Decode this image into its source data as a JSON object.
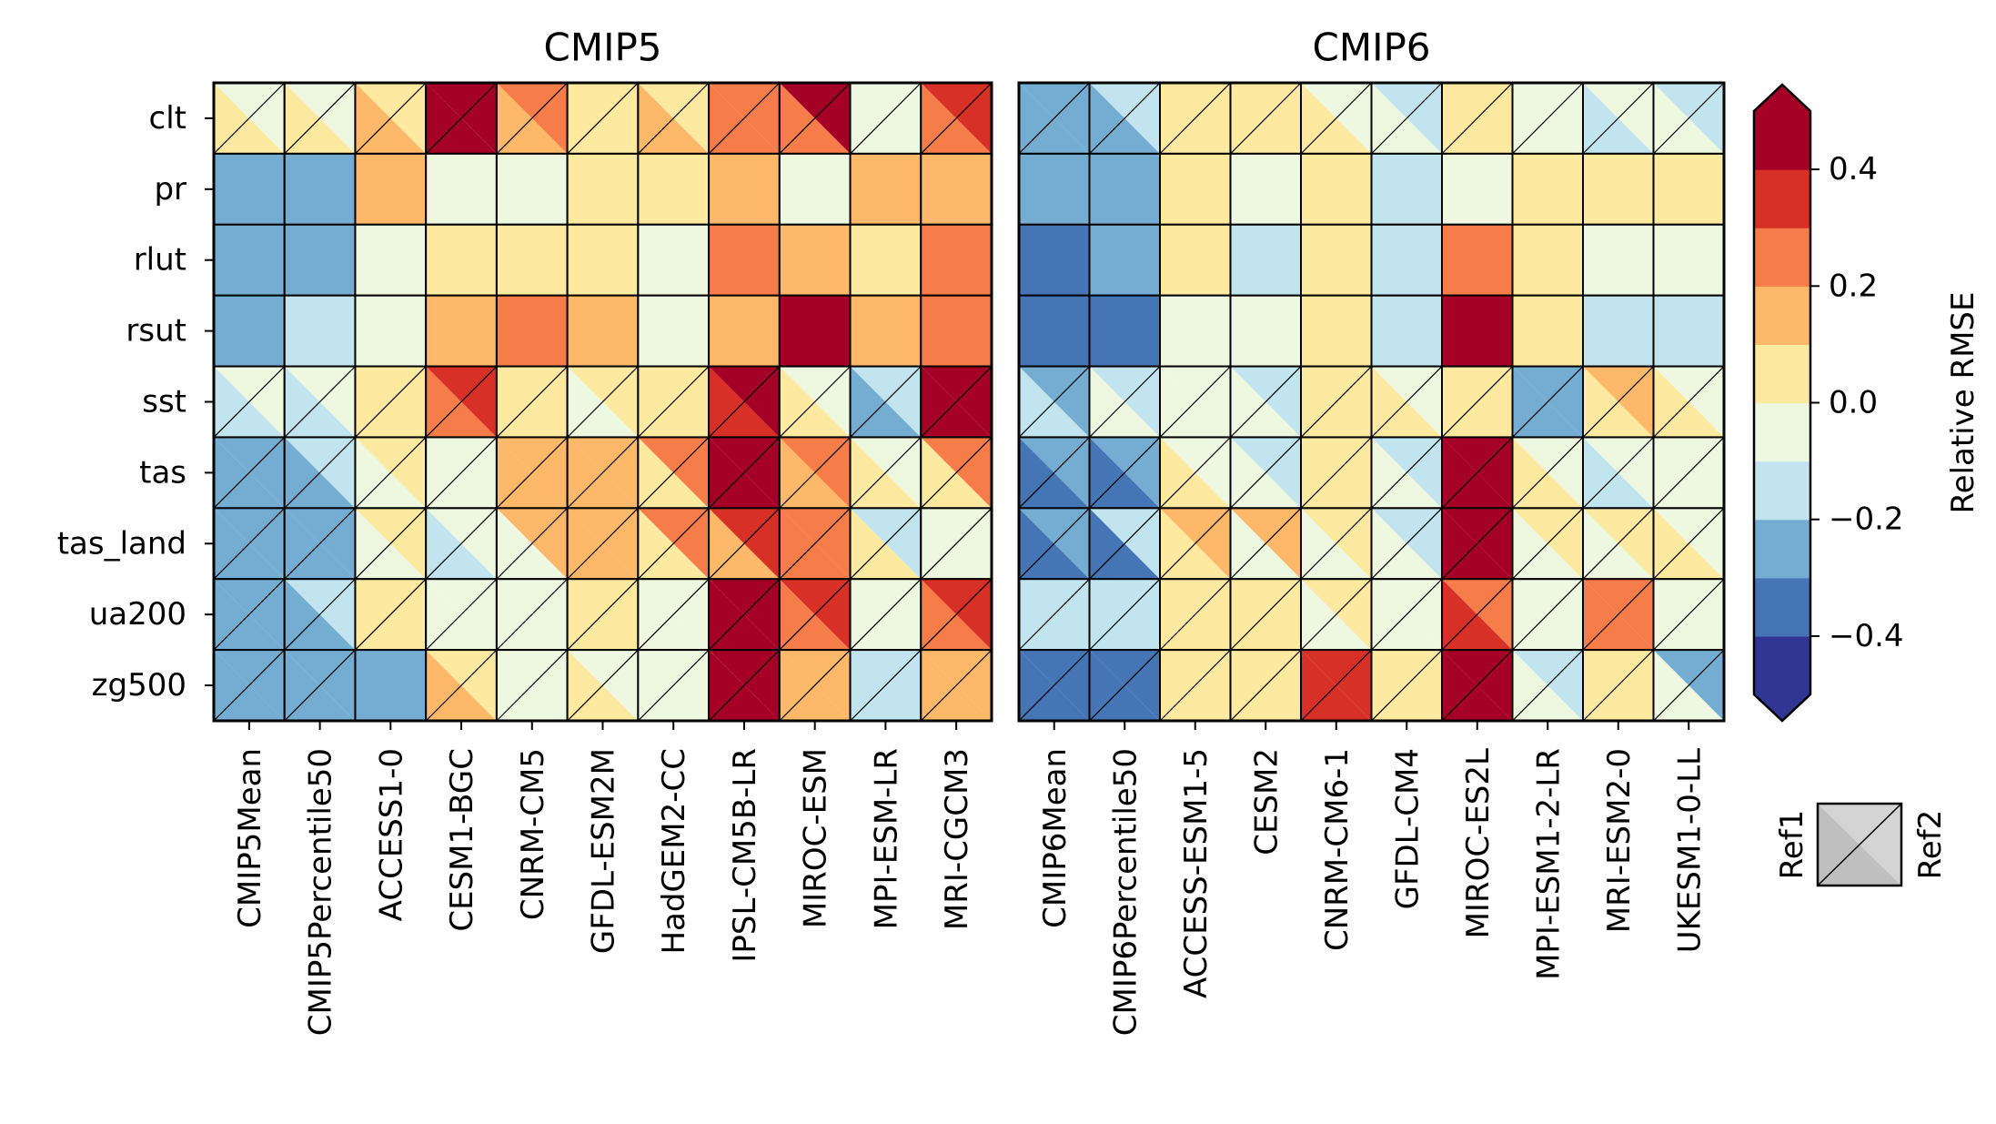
{
  "chart_data": {
    "type": "heatmap",
    "rows": [
      "clt",
      "pr",
      "rlut",
      "rsut",
      "sst",
      "tas",
      "tas_land",
      "ua200",
      "zg500"
    ],
    "panels": [
      {
        "title": "CMIP5",
        "columns": [
          "CMIP5Mean",
          "CMIP5Percentile50",
          "ACCESS1-0",
          "CESM1-BGC",
          "CNRM-CM5",
          "GFDL-ESM2M",
          "HadGEM2-CC",
          "IPSL-CM5B-LR",
          "MIROC-ESM",
          "MPI-ESM-LR",
          "MRI-CGCM3"
        ],
        "values": [
          [
            [
              0.05,
              -0.05
            ],
            [
              0.05,
              -0.05
            ],
            [
              0.15,
              0.05
            ],
            [
              0.45,
              0.45
            ],
            [
              0.15,
              0.25
            ],
            [
              0.05,
              0.05
            ],
            [
              0.15,
              0.05
            ],
            [
              0.25,
              0.25
            ],
            [
              0.25,
              0.45
            ],
            [
              -0.05,
              -0.05
            ],
            [
              0.25,
              0.35
            ]
          ],
          [
            [
              -0.25,
              null
            ],
            [
              -0.25,
              null
            ],
            [
              0.15,
              null
            ],
            [
              -0.05,
              null
            ],
            [
              -0.05,
              null
            ],
            [
              0.05,
              null
            ],
            [
              0.05,
              null
            ],
            [
              0.15,
              null
            ],
            [
              -0.05,
              null
            ],
            [
              0.15,
              null
            ],
            [
              0.15,
              null
            ]
          ],
          [
            [
              -0.25,
              null
            ],
            [
              -0.25,
              null
            ],
            [
              -0.05,
              null
            ],
            [
              0.05,
              null
            ],
            [
              0.05,
              null
            ],
            [
              0.05,
              null
            ],
            [
              -0.05,
              null
            ],
            [
              0.25,
              null
            ],
            [
              0.15,
              null
            ],
            [
              0.05,
              null
            ],
            [
              0.25,
              null
            ]
          ],
          [
            [
              -0.25,
              null
            ],
            [
              -0.15,
              null
            ],
            [
              -0.05,
              null
            ],
            [
              0.15,
              null
            ],
            [
              0.25,
              null
            ],
            [
              0.15,
              null
            ],
            [
              -0.05,
              null
            ],
            [
              0.15,
              null
            ],
            [
              0.45,
              null
            ],
            [
              0.15,
              null
            ],
            [
              0.25,
              null
            ]
          ],
          [
            [
              -0.15,
              -0.05
            ],
            [
              -0.15,
              -0.05
            ],
            [
              0.05,
              0.05
            ],
            [
              0.25,
              0.35
            ],
            [
              0.05,
              0.05
            ],
            [
              -0.05,
              0.05
            ],
            [
              0.05,
              0.05
            ],
            [
              0.35,
              0.45
            ],
            [
              0.05,
              -0.05
            ],
            [
              -0.25,
              -0.15
            ],
            [
              0.45,
              0.45
            ]
          ],
          [
            [
              -0.25,
              -0.25
            ],
            [
              -0.25,
              -0.15
            ],
            [
              -0.05,
              0.05
            ],
            [
              -0.05,
              -0.05
            ],
            [
              0.15,
              0.15
            ],
            [
              0.15,
              0.15
            ],
            [
              0.05,
              0.25
            ],
            [
              0.45,
              0.45
            ],
            [
              0.15,
              0.25
            ],
            [
              0.05,
              -0.05
            ],
            [
              0.05,
              0.25
            ]
          ],
          [
            [
              -0.25,
              -0.25
            ],
            [
              -0.25,
              -0.25
            ],
            [
              -0.05,
              0.05
            ],
            [
              -0.15,
              -0.05
            ],
            [
              -0.05,
              0.15
            ],
            [
              0.15,
              0.15
            ],
            [
              0.05,
              0.25
            ],
            [
              0.15,
              0.35
            ],
            [
              0.25,
              0.25
            ],
            [
              0.05,
              -0.15
            ],
            [
              -0.05,
              -0.05
            ]
          ],
          [
            [
              -0.25,
              -0.25
            ],
            [
              -0.25,
              -0.15
            ],
            [
              0.05,
              0.05
            ],
            [
              -0.05,
              -0.05
            ],
            [
              -0.05,
              -0.05
            ],
            [
              0.05,
              0.05
            ],
            [
              -0.05,
              -0.05
            ],
            [
              0.45,
              0.45
            ],
            [
              0.25,
              0.35
            ],
            [
              -0.05,
              -0.05
            ],
            [
              0.25,
              0.35
            ]
          ],
          [
            [
              -0.25,
              -0.25
            ],
            [
              -0.25,
              -0.25
            ],
            [
              -0.25,
              null
            ],
            [
              0.15,
              0.05
            ],
            [
              -0.05,
              -0.05
            ],
            [
              0.05,
              -0.05
            ],
            [
              -0.05,
              -0.05
            ],
            [
              0.45,
              0.45
            ],
            [
              0.15,
              0.15
            ],
            [
              -0.15,
              -0.15
            ],
            [
              0.15,
              0.15
            ]
          ]
        ]
      },
      {
        "title": "CMIP6",
        "columns": [
          "CMIP6Mean",
          "CMIP6Percentile50",
          "ACCESS-ESM1-5",
          "CESM2",
          "CNRM-CM6-1",
          "GFDL-CM4",
          "MIROC-ES2L",
          "MPI-ESM1-2-LR",
          "MRI-ESM2-0",
          "UKESM1-0-LL"
        ],
        "values": [
          [
            [
              -0.25,
              -0.25
            ],
            [
              -0.25,
              -0.15
            ],
            [
              0.05,
              0.05
            ],
            [
              0.05,
              0.05
            ],
            [
              0.05,
              -0.05
            ],
            [
              -0.05,
              -0.15
            ],
            [
              0.05,
              0.05
            ],
            [
              -0.05,
              -0.05
            ],
            [
              -0.15,
              -0.05
            ],
            [
              -0.05,
              -0.15
            ]
          ],
          [
            [
              -0.25,
              null
            ],
            [
              -0.25,
              null
            ],
            [
              0.05,
              null
            ],
            [
              -0.05,
              null
            ],
            [
              0.05,
              null
            ],
            [
              -0.15,
              null
            ],
            [
              -0.05,
              null
            ],
            [
              0.05,
              null
            ],
            [
              0.05,
              null
            ],
            [
              0.05,
              null
            ]
          ],
          [
            [
              -0.35,
              null
            ],
            [
              -0.25,
              null
            ],
            [
              0.05,
              null
            ],
            [
              -0.15,
              null
            ],
            [
              0.05,
              null
            ],
            [
              -0.15,
              null
            ],
            [
              0.25,
              null
            ],
            [
              0.05,
              null
            ],
            [
              -0.05,
              null
            ],
            [
              -0.05,
              null
            ]
          ],
          [
            [
              -0.35,
              null
            ],
            [
              -0.35,
              null
            ],
            [
              -0.05,
              null
            ],
            [
              -0.05,
              null
            ],
            [
              0.05,
              null
            ],
            [
              -0.15,
              null
            ],
            [
              0.45,
              null
            ],
            [
              0.05,
              null
            ],
            [
              -0.15,
              null
            ],
            [
              -0.15,
              null
            ]
          ],
          [
            [
              -0.15,
              -0.25
            ],
            [
              -0.05,
              -0.15
            ],
            [
              -0.05,
              -0.05
            ],
            [
              -0.05,
              -0.15
            ],
            [
              0.05,
              0.05
            ],
            [
              0.05,
              -0.05
            ],
            [
              0.05,
              0.05
            ],
            [
              -0.25,
              -0.25
            ],
            [
              0.05,
              0.15
            ],
            [
              0.05,
              -0.05
            ]
          ],
          [
            [
              -0.35,
              -0.25
            ],
            [
              -0.35,
              -0.25
            ],
            [
              0.05,
              -0.05
            ],
            [
              -0.05,
              -0.15
            ],
            [
              0.05,
              0.05
            ],
            [
              -0.05,
              -0.15
            ],
            [
              0.45,
              0.45
            ],
            [
              0.05,
              -0.05
            ],
            [
              -0.15,
              -0.05
            ],
            [
              -0.05,
              -0.05
            ]
          ],
          [
            [
              -0.35,
              -0.25
            ],
            [
              -0.35,
              -0.15
            ],
            [
              0.05,
              0.15
            ],
            [
              -0.05,
              0.15
            ],
            [
              -0.05,
              0.05
            ],
            [
              -0.05,
              -0.15
            ],
            [
              0.45,
              0.45
            ],
            [
              -0.05,
              0.05
            ],
            [
              -0.05,
              0.05
            ],
            [
              0.05,
              -0.05
            ]
          ],
          [
            [
              -0.15,
              -0.15
            ],
            [
              -0.15,
              -0.15
            ],
            [
              0.05,
              0.05
            ],
            [
              0.05,
              0.05
            ],
            [
              -0.05,
              0.05
            ],
            [
              -0.05,
              -0.05
            ],
            [
              0.35,
              0.25
            ],
            [
              -0.05,
              -0.05
            ],
            [
              0.25,
              0.25
            ],
            [
              -0.05,
              -0.05
            ]
          ],
          [
            [
              -0.35,
              -0.35
            ],
            [
              -0.35,
              -0.35
            ],
            [
              0.05,
              0.05
            ],
            [
              0.05,
              0.05
            ],
            [
              0.35,
              0.35
            ],
            [
              0.05,
              0.05
            ],
            [
              0.45,
              0.45
            ],
            [
              -0.05,
              -0.15
            ],
            [
              0.05,
              0.05
            ],
            [
              -0.05,
              -0.25
            ]
          ]
        ]
      }
    ],
    "colorbar": {
      "label": "Relative RMSE",
      "range": [
        -0.5,
        0.5
      ],
      "ticks": [
        -0.4,
        -0.2,
        0.0,
        0.2,
        0.4
      ],
      "tick_labels": [
        "−0.4",
        "−0.2",
        "0.0",
        "0.2",
        "0.4"
      ],
      "extend": "both",
      "colors": [
        "#313695",
        "#4575b4",
        "#74add1",
        "#c1e4ef",
        "#eef8e0",
        "#fde9a0",
        "#fdb869",
        "#f67c4a",
        "#d73027",
        "#a50026"
      ]
    },
    "legend": {
      "lower_left_label": "Ref1",
      "upper_right_label": "Ref2",
      "placement": "bottom-right"
    }
  }
}
